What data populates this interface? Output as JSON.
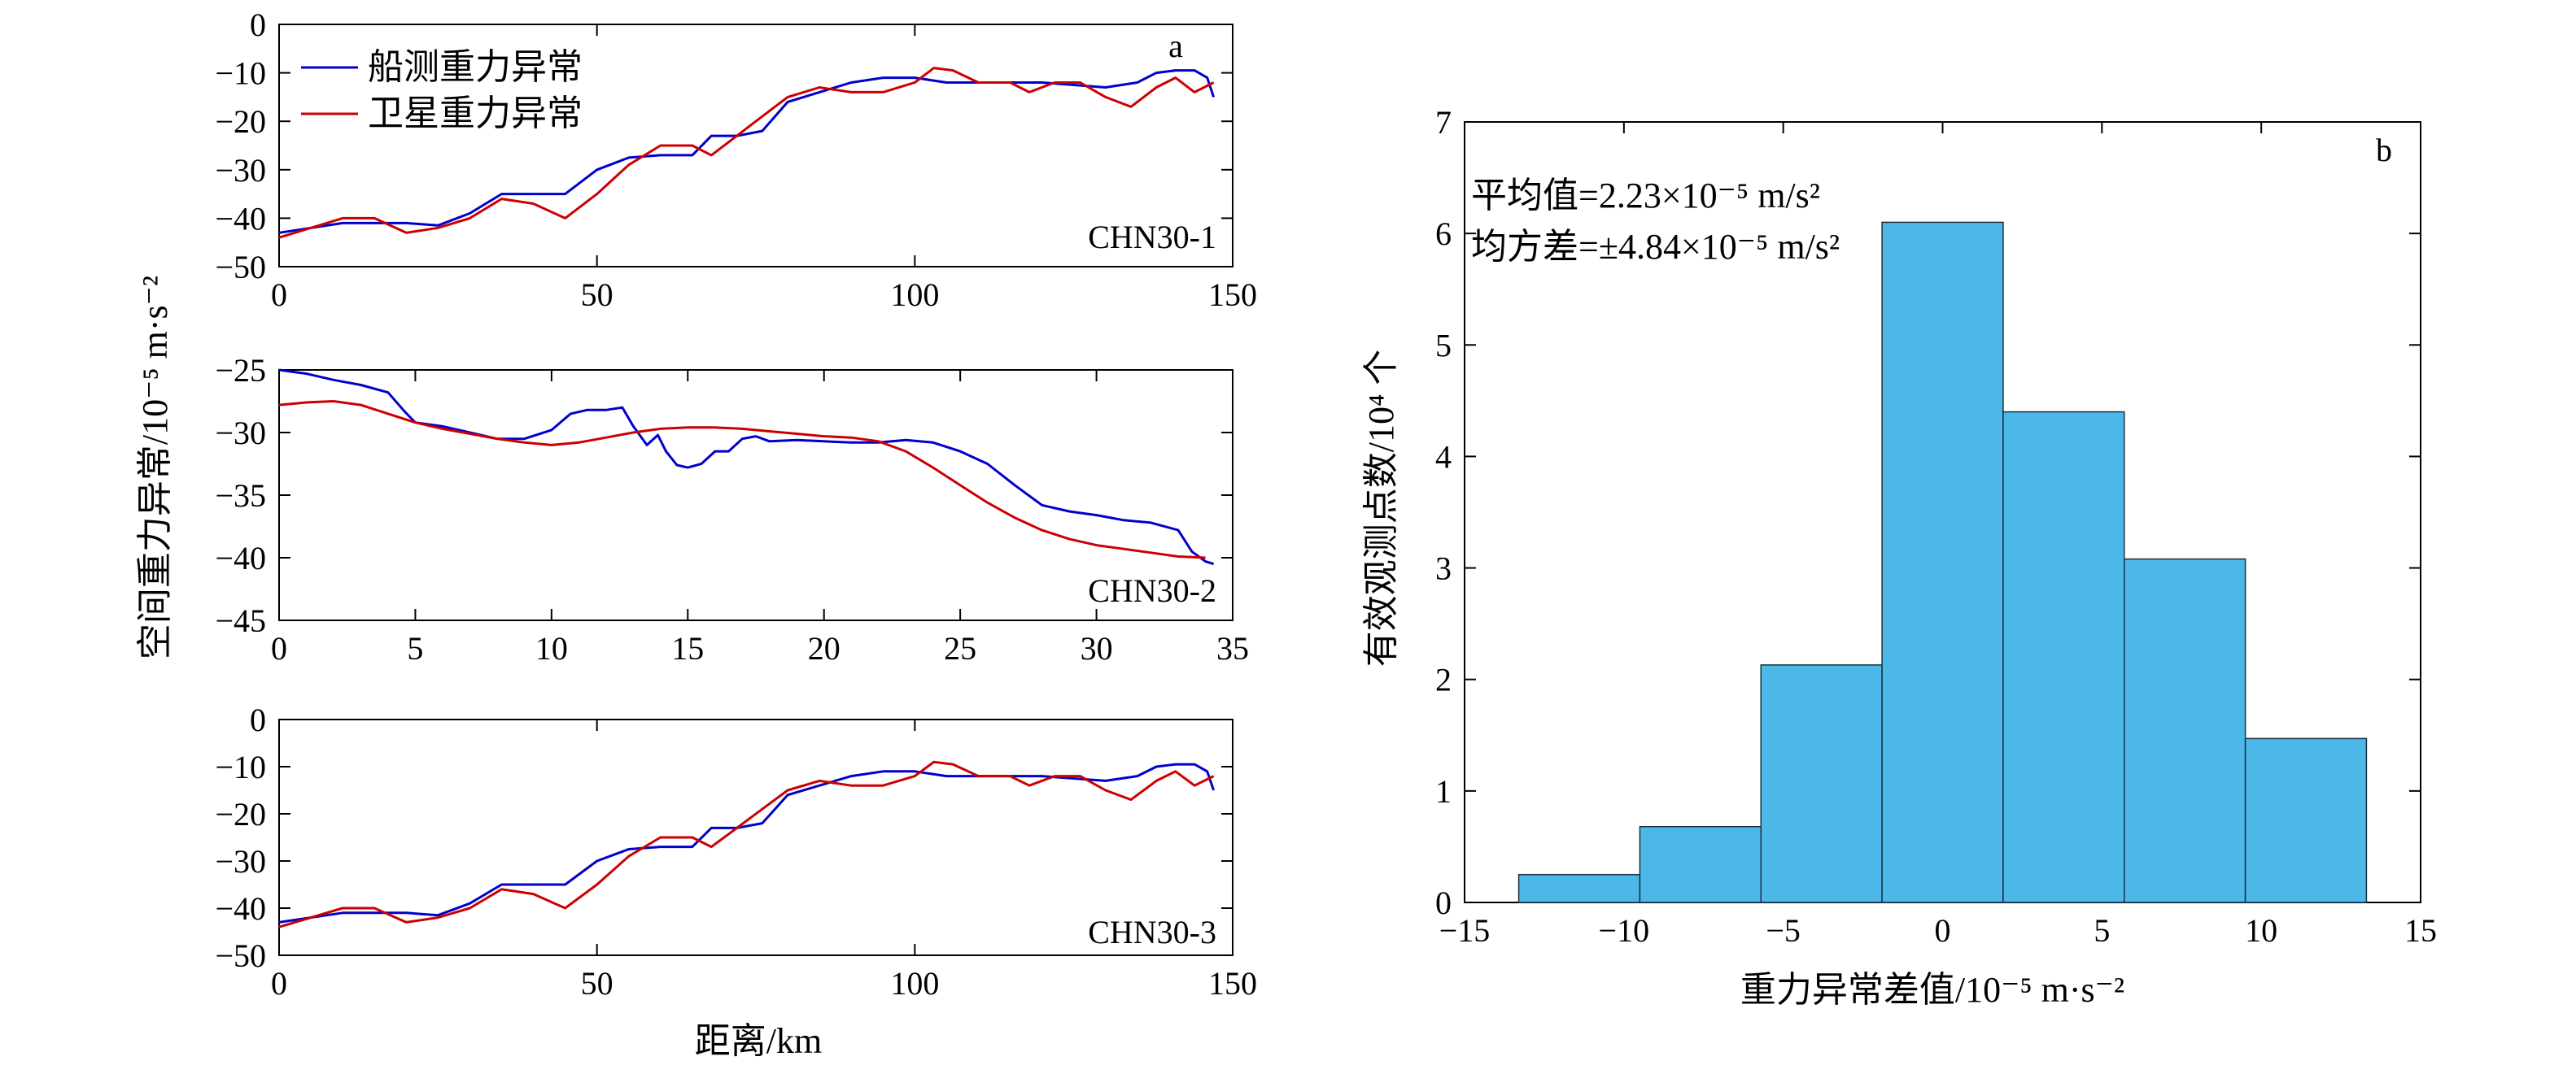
{
  "colors": {
    "ship": "#0000cc",
    "satellite": "#cc0000",
    "bar_fill": "#4cb8e8",
    "bar_edge": "#1a3040"
  },
  "shared": {
    "ylabel": "空间重力异常/10⁻⁵ m·s⁻²",
    "xlabel": "距离/km"
  },
  "legend": [
    "船测重力异常",
    "卫星重力异常"
  ],
  "annotations": {
    "mean": "平均值=2.23×10⁻⁵ m/s²",
    "std": "均方差=±4.84×10⁻⁵ m/s²"
  },
  "chart_data": [
    {
      "type": "line",
      "panel_letter": "a",
      "profile_label": "CHN30-1",
      "xlim": [
        0,
        150
      ],
      "ylim": [
        -50,
        0
      ],
      "xticks": [
        0,
        50,
        100,
        150
      ],
      "yticks": [
        0,
        -10,
        -20,
        -30,
        -40,
        -50
      ],
      "series": [
        {
          "name": "船测重力异常",
          "color": "#0000cc",
          "x": [
            0,
            10,
            20,
            25,
            30,
            35,
            40,
            45,
            50,
            55,
            60,
            65,
            68,
            72,
            76,
            80,
            85,
            90,
            95,
            100,
            105,
            110,
            115,
            120,
            125,
            130,
            135,
            138,
            141,
            144,
            146,
            147
          ],
          "y": [
            -43,
            -41,
            -41,
            -41.5,
            -39,
            -35,
            -35,
            -35,
            -30,
            -27.5,
            -27,
            -27,
            -23,
            -23,
            -22,
            -16,
            -14,
            -12,
            -11,
            -11,
            -12,
            -12,
            -12,
            -12,
            -12.5,
            -13,
            -12,
            -10,
            -9.5,
            -9.5,
            -11,
            -15
          ]
        },
        {
          "name": "卫星重力异常",
          "color": "#cc0000",
          "x": [
            0,
            5,
            10,
            15,
            20,
            25,
            30,
            35,
            40,
            45,
            50,
            55,
            60,
            65,
            68,
            72,
            76,
            80,
            85,
            90,
            95,
            100,
            103,
            106,
            110,
            115,
            118,
            122,
            126,
            130,
            134,
            138,
            141,
            144,
            147
          ],
          "y": [
            -44,
            -42,
            -40,
            -40,
            -43,
            -42,
            -40,
            -36,
            -37,
            -40,
            -35,
            -29,
            -25,
            -25,
            -27,
            -23,
            -19,
            -15,
            -13,
            -14,
            -14,
            -12,
            -9,
            -9.5,
            -12,
            -12,
            -14,
            -12,
            -12,
            -15,
            -17,
            -13,
            -11,
            -14,
            -12
          ]
        }
      ]
    },
    {
      "type": "line",
      "profile_label": "CHN30-2",
      "xlim": [
        0,
        35
      ],
      "ylim": [
        -45,
        -25
      ],
      "xticks": [
        0,
        5,
        10,
        15,
        20,
        25,
        30,
        35
      ],
      "yticks": [
        -25,
        -30,
        -35,
        -40,
        -45
      ],
      "series": [
        {
          "name": "船测重力异常",
          "color": "#0000cc",
          "x": [
            0,
            1,
            2,
            3,
            4,
            4.6,
            5,
            6,
            7,
            8,
            9,
            10,
            10.7,
            11.3,
            12,
            12.6,
            13,
            13.5,
            13.9,
            14.2,
            14.6,
            15,
            15.5,
            16,
            16.5,
            17,
            17.5,
            18,
            19,
            20,
            21,
            22,
            23,
            24,
            25,
            26,
            27,
            28,
            29,
            30,
            31,
            32,
            33,
            33.5,
            34,
            34.3
          ],
          "y": [
            -25,
            -25.3,
            -25.8,
            -26.2,
            -26.8,
            -28.3,
            -29.2,
            -29.5,
            -30,
            -30.5,
            -30.5,
            -29.8,
            -28.5,
            -28.2,
            -28.2,
            -28,
            -29.5,
            -31,
            -30.2,
            -31.5,
            -32.6,
            -32.8,
            -32.5,
            -31.5,
            -31.5,
            -30.5,
            -30.3,
            -30.7,
            -30.6,
            -30.7,
            -30.8,
            -30.8,
            -30.6,
            -30.8,
            -31.5,
            -32.5,
            -34.2,
            -35.8,
            -36.3,
            -36.6,
            -37,
            -37.2,
            -37.8,
            -39.5,
            -40.3,
            -40.5
          ]
        },
        {
          "name": "卫星重力异常",
          "color": "#cc0000",
          "x": [
            0,
            1,
            2,
            3,
            4,
            5,
            6,
            7,
            8,
            9,
            10,
            11,
            12,
            13,
            14,
            15,
            16,
            17,
            18,
            19,
            20,
            21,
            22,
            23,
            24,
            25,
            26,
            27,
            28,
            29,
            30,
            31,
            32,
            33,
            34
          ],
          "y": [
            -27.8,
            -27.6,
            -27.5,
            -27.8,
            -28.5,
            -29.2,
            -29.7,
            -30.1,
            -30.5,
            -30.8,
            -31,
            -30.8,
            -30.4,
            -30,
            -29.7,
            -29.6,
            -29.6,
            -29.7,
            -29.9,
            -30.1,
            -30.3,
            -30.4,
            -30.7,
            -31.5,
            -32.8,
            -34.2,
            -35.6,
            -36.8,
            -37.8,
            -38.5,
            -39,
            -39.3,
            -39.6,
            -39.9,
            -40
          ]
        }
      ]
    },
    {
      "type": "line",
      "profile_label": "CHN30-3",
      "xlim": [
        0,
        150
      ],
      "ylim": [
        -50,
        0
      ],
      "xticks": [
        0,
        50,
        100,
        150
      ],
      "yticks": [
        0,
        -10,
        -20,
        -30,
        -40,
        -50
      ],
      "series": [
        {
          "name": "船测重力异常",
          "color": "#0000cc",
          "x": [
            0,
            10,
            20,
            25,
            30,
            35,
            40,
            45,
            50,
            55,
            60,
            65,
            68,
            72,
            76,
            80,
            85,
            90,
            95,
            100,
            105,
            110,
            115,
            120,
            125,
            130,
            135,
            138,
            141,
            144,
            146,
            147
          ],
          "y": [
            -43,
            -41,
            -41,
            -41.5,
            -39,
            -35,
            -35,
            -35,
            -30,
            -27.5,
            -27,
            -27,
            -23,
            -23,
            -22,
            -16,
            -14,
            -12,
            -11,
            -11,
            -12,
            -12,
            -12,
            -12,
            -12.5,
            -13,
            -12,
            -10,
            -9.5,
            -9.5,
            -11,
            -15
          ]
        },
        {
          "name": "卫星重力异常",
          "color": "#cc0000",
          "x": [
            0,
            5,
            10,
            15,
            20,
            25,
            30,
            35,
            40,
            45,
            50,
            55,
            60,
            65,
            68,
            72,
            76,
            80,
            85,
            90,
            95,
            100,
            103,
            106,
            110,
            115,
            118,
            122,
            126,
            130,
            134,
            138,
            141,
            144,
            147
          ],
          "y": [
            -44,
            -42,
            -40,
            -40,
            -43,
            -42,
            -40,
            -36,
            -37,
            -40,
            -35,
            -29,
            -25,
            -25,
            -27,
            -23,
            -19,
            -15,
            -13,
            -14,
            -14,
            -12,
            -9,
            -9.5,
            -12,
            -12,
            -14,
            -12,
            -12,
            -15,
            -17,
            -13,
            -11,
            -14,
            -12
          ]
        }
      ]
    },
    {
      "type": "bar",
      "panel_letter": "b",
      "xlabel": "重力异常差值/10⁻⁵ m·s⁻²",
      "ylabel": "有效观测点数/10⁴ 个",
      "xlim": [
        -15,
        15
      ],
      "ylim": [
        0,
        7
      ],
      "xticks": [
        -15,
        -10,
        -5,
        0,
        5,
        10,
        15
      ],
      "yticks": [
        0,
        1,
        2,
        3,
        4,
        5,
        6,
        7
      ],
      "bin_edges": [
        -13.3,
        -9.5,
        -5.7,
        -1.9,
        1.9,
        5.7,
        9.5,
        13.3
      ],
      "values": [
        0.25,
        0.68,
        2.13,
        6.1,
        4.4,
        3.08,
        1.47
      ]
    }
  ]
}
